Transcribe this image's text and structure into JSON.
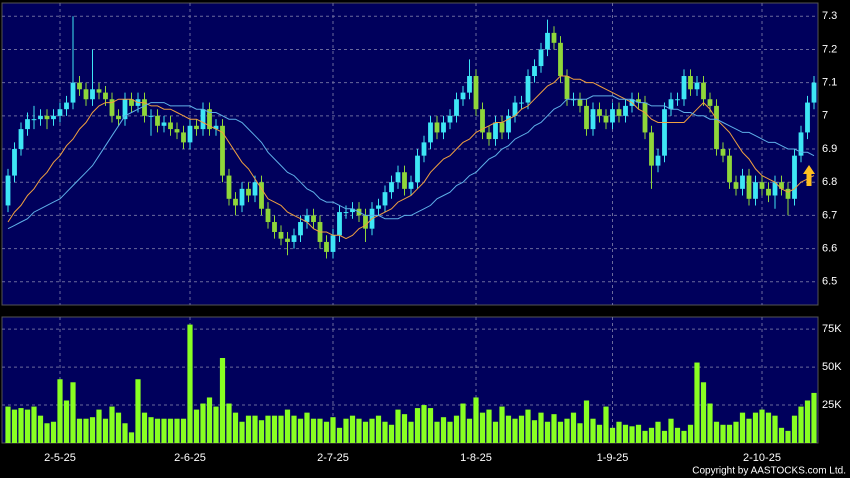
{
  "chart_data": [
    {
      "type": "candlestick",
      "categories": [
        null,
        null,
        null,
        null,
        null,
        null,
        null,
        null,
        "2-5-25",
        null,
        null,
        null,
        null,
        null,
        null,
        null,
        null,
        null,
        null,
        null,
        null,
        null,
        null,
        null,
        null,
        null,
        null,
        null,
        "2-6-25",
        null,
        null,
        null,
        null,
        null,
        null,
        null,
        null,
        null,
        null,
        null,
        null,
        null,
        null,
        null,
        null,
        null,
        null,
        null,
        null,
        null,
        "2-7-25",
        null,
        null,
        null,
        null,
        null,
        null,
        null,
        null,
        null,
        null,
        null,
        null,
        null,
        null,
        null,
        null,
        null,
        null,
        null,
        null,
        null,
        "1-8-25",
        null,
        null,
        null,
        null,
        null,
        null,
        null,
        null,
        null,
        null,
        null,
        null,
        null,
        null,
        null,
        null,
        null,
        null,
        null,
        null,
        "1-9-25",
        null,
        null,
        null,
        null,
        null,
        null,
        null,
        null,
        null,
        null,
        null,
        null,
        null,
        null,
        null,
        null,
        null,
        null,
        null,
        null,
        null,
        null,
        "2-10-25",
        null,
        null,
        null,
        null,
        null,
        null,
        null,
        null
      ],
      "open": [
        6.73,
        6.82,
        6.9,
        6.96,
        6.99,
        6.99,
        7.0,
        6.99,
        7.0,
        7.02,
        7.04,
        7.1,
        7.08,
        7.05,
        7.08,
        7.07,
        7.05,
        7.0,
        6.99,
        7.05,
        7.03,
        7.05,
        7.0,
        7.0,
        6.97,
        6.98,
        6.96,
        6.95,
        6.92,
        6.97,
        6.96,
        7.02,
        6.96,
        6.97,
        6.82,
        6.75,
        6.73,
        6.78,
        6.76,
        6.8,
        6.72,
        6.68,
        6.65,
        6.63,
        6.62,
        6.64,
        6.68,
        6.7,
        6.68,
        6.62,
        6.59,
        6.64,
        6.71,
        6.71,
        6.72,
        6.7,
        6.66,
        6.72,
        6.73,
        6.77,
        6.8,
        6.83,
        6.78,
        6.8,
        6.88,
        6.92,
        6.98,
        6.95,
        6.98,
        7.0,
        7.05,
        7.07,
        7.12,
        7.02,
        6.95,
        6.93,
        6.98,
        6.95,
        7.0,
        7.04,
        7.04,
        7.12,
        7.15,
        7.2,
        7.25,
        7.22,
        7.12,
        7.05,
        7.05,
        7.03,
        6.96,
        7.02,
        7.0,
        6.98,
        7.02,
        7.0,
        7.03,
        7.05,
        7.04,
        6.95,
        6.85,
        6.88,
        7.02,
        7.05,
        7.05,
        7.12,
        7.08,
        7.1,
        7.05,
        7.03,
        6.9,
        6.88,
        6.8,
        6.78,
        6.82,
        6.75,
        6.8,
        6.78,
        6.76,
        6.8,
        6.78,
        6.75,
        6.88,
        6.95,
        7.04
      ],
      "high": [
        6.84,
        6.92,
        6.98,
        7.01,
        7.03,
        7.02,
        7.02,
        7.02,
        7.04,
        7.06,
        7.3,
        7.12,
        7.1,
        7.2,
        7.1,
        7.09,
        7.07,
        7.02,
        7.07,
        7.07,
        7.07,
        7.07,
        7.02,
        7.02,
        7.0,
        7.0,
        6.98,
        6.97,
        6.99,
        6.99,
        7.04,
        7.04,
        6.99,
        6.99,
        6.84,
        6.77,
        6.8,
        6.8,
        6.82,
        6.82,
        6.74,
        6.7,
        6.67,
        6.65,
        6.66,
        6.7,
        6.72,
        6.72,
        6.7,
        6.64,
        6.66,
        6.73,
        6.73,
        6.74,
        6.74,
        6.72,
        6.74,
        6.75,
        6.79,
        6.82,
        6.85,
        6.85,
        6.82,
        6.9,
        6.94,
        7.0,
        7.0,
        7.0,
        7.02,
        7.07,
        7.09,
        7.17,
        7.14,
        7.04,
        6.97,
        7.0,
        7.0,
        7.02,
        7.06,
        7.06,
        7.14,
        7.17,
        7.22,
        7.29,
        7.27,
        7.24,
        7.14,
        7.07,
        7.07,
        7.05,
        7.04,
        7.04,
        7.02,
        7.04,
        7.04,
        7.05,
        7.07,
        7.07,
        7.06,
        6.97,
        6.9,
        7.04,
        7.07,
        7.07,
        7.14,
        7.14,
        7.12,
        7.12,
        7.07,
        7.05,
        6.92,
        6.9,
        6.82,
        6.84,
        6.84,
        6.82,
        6.82,
        6.8,
        6.82,
        6.82,
        6.8,
        6.9,
        6.97,
        7.06,
        7.12
      ],
      "low": [
        6.71,
        6.8,
        6.88,
        6.94,
        6.96,
        6.97,
        6.96,
        6.97,
        6.98,
        7.0,
        7.02,
        7.06,
        7.03,
        7.03,
        7.05,
        7.03,
        6.98,
        6.97,
        6.97,
        7.01,
        7.01,
        6.98,
        6.94,
        6.95,
        6.95,
        6.94,
        6.93,
        6.9,
        6.9,
        6.94,
        6.94,
        6.94,
        6.94,
        6.8,
        6.73,
        6.7,
        6.71,
        6.74,
        6.74,
        6.7,
        6.66,
        6.63,
        6.61,
        6.58,
        6.6,
        6.62,
        6.66,
        6.66,
        6.6,
        6.57,
        6.57,
        6.62,
        6.69,
        6.69,
        6.68,
        6.62,
        6.64,
        6.7,
        6.71,
        6.75,
        6.78,
        6.76,
        6.76,
        6.78,
        6.86,
        6.9,
        6.93,
        6.93,
        6.96,
        6.98,
        7.03,
        7.05,
        7.0,
        6.93,
        6.91,
        6.91,
        6.93,
        6.93,
        6.98,
        7.02,
        7.02,
        7.1,
        7.13,
        7.18,
        7.2,
        7.1,
        7.03,
        7.03,
        7.01,
        6.94,
        6.94,
        6.98,
        6.96,
        6.96,
        6.98,
        6.98,
        7.01,
        7.02,
        6.93,
        6.78,
        6.83,
        6.86,
        7.0,
        7.03,
        7.03,
        7.06,
        7.06,
        7.03,
        7.01,
        6.88,
        6.86,
        6.78,
        6.76,
        6.76,
        6.73,
        6.73,
        6.76,
        6.74,
        6.72,
        6.76,
        6.7,
        6.73,
        6.86,
        6.93,
        7.02
      ],
      "close": [
        6.82,
        6.9,
        6.96,
        6.99,
        6.99,
        7.0,
        6.99,
        7.0,
        7.02,
        7.04,
        7.1,
        7.08,
        7.05,
        7.08,
        7.07,
        7.05,
        7.0,
        6.99,
        7.05,
        7.03,
        7.05,
        7.0,
        7.0,
        6.97,
        6.98,
        6.96,
        6.95,
        6.92,
        6.97,
        6.96,
        7.02,
        6.96,
        6.97,
        6.82,
        6.75,
        6.73,
        6.78,
        6.76,
        6.8,
        6.72,
        6.68,
        6.65,
        6.63,
        6.62,
        6.64,
        6.68,
        6.7,
        6.68,
        6.62,
        6.59,
        6.64,
        6.71,
        6.71,
        6.72,
        6.7,
        6.66,
        6.72,
        6.73,
        6.77,
        6.8,
        6.83,
        6.78,
        6.8,
        6.88,
        6.92,
        6.98,
        6.95,
        6.98,
        7.0,
        7.05,
        7.07,
        7.12,
        7.02,
        6.95,
        6.93,
        6.98,
        6.95,
        7.0,
        7.04,
        7.04,
        7.12,
        7.15,
        7.2,
        7.25,
        7.22,
        7.12,
        7.05,
        7.05,
        7.03,
        6.96,
        7.02,
        7.0,
        6.98,
        7.02,
        7.0,
        7.03,
        7.05,
        7.04,
        6.95,
        6.85,
        6.88,
        7.02,
        7.05,
        7.05,
        7.12,
        7.08,
        7.1,
        7.05,
        7.03,
        6.9,
        6.88,
        6.8,
        6.78,
        6.82,
        6.75,
        6.8,
        6.78,
        6.76,
        6.8,
        6.78,
        6.75,
        6.88,
        6.95,
        7.04,
        7.1
      ],
      "up_color": "#3ee6f5",
      "down_color": "#8fd63a",
      "series": [
        {
          "color": "#f0a040",
          "values": [
            6.68,
            6.71,
            6.73,
            6.76,
            6.78,
            6.81,
            6.83,
            6.86,
            6.88,
            6.91,
            6.93,
            6.96,
            6.98,
            7.01,
            7.03,
            7.04,
            7.04,
            7.05,
            7.05,
            7.05,
            7.04,
            7.04,
            7.03,
            7.03,
            7.02,
            7.02,
            7.01,
            7.0,
            6.99,
            6.99,
            6.98,
            6.97,
            6.96,
            6.95,
            6.92,
            6.89,
            6.86,
            6.84,
            6.81,
            6.78,
            6.75,
            6.74,
            6.73,
            6.71,
            6.7,
            6.69,
            6.68,
            6.66,
            6.65,
            6.65,
            6.64,
            6.64,
            6.63,
            6.64,
            6.66,
            6.67,
            6.69,
            6.7,
            6.71,
            6.72,
            6.74,
            6.75,
            6.76,
            6.78,
            6.8,
            6.83,
            6.85,
            6.87,
            6.88,
            6.9,
            6.92,
            6.93,
            6.95,
            6.96,
            6.97,
            6.98,
            6.98,
            6.99,
            7.0,
            7.02,
            7.03,
            7.05,
            7.07,
            7.09,
            7.1,
            7.12,
            7.12,
            7.11,
            7.11,
            7.1,
            7.1,
            7.09,
            7.08,
            7.07,
            7.06,
            7.05,
            7.04,
            7.02,
            7.01,
            6.99,
            6.98,
            6.98,
            6.98,
            6.98,
            6.98,
            7.0,
            7.02,
            7.04,
            7.02,
            6.99,
            6.97,
            6.95,
            6.92,
            6.89,
            6.87,
            6.84,
            6.82,
            6.81,
            6.8,
            6.78,
            6.77,
            6.78,
            6.8,
            6.81,
            6.82
          ]
        },
        {
          "color": "#5fb0e8",
          "values": [
            6.66,
            6.67,
            6.68,
            6.69,
            6.71,
            6.72,
            6.73,
            6.74,
            6.75,
            6.77,
            6.79,
            6.81,
            6.83,
            6.85,
            6.88,
            6.91,
            6.94,
            6.97,
            7.0,
            7.01,
            7.02,
            7.03,
            7.04,
            7.04,
            7.04,
            7.03,
            7.03,
            7.03,
            7.03,
            7.02,
            7.02,
            7.01,
            7.01,
            7.0,
            6.99,
            6.99,
            6.98,
            6.96,
            6.94,
            6.92,
            6.89,
            6.87,
            6.85,
            6.83,
            6.82,
            6.8,
            6.78,
            6.77,
            6.75,
            6.74,
            6.74,
            6.73,
            6.72,
            6.72,
            6.71,
            6.7,
            6.7,
            6.7,
            6.69,
            6.69,
            6.69,
            6.7,
            6.7,
            6.71,
            6.72,
            6.73,
            6.75,
            6.76,
            6.77,
            6.79,
            6.8,
            6.82,
            6.83,
            6.85,
            6.87,
            6.88,
            6.9,
            6.91,
            6.93,
            6.94,
            6.95,
            6.97,
            6.98,
            7.0,
            7.02,
            7.03,
            7.05,
            7.05,
            7.05,
            7.05,
            7.06,
            7.06,
            7.06,
            7.06,
            7.05,
            7.05,
            7.05,
            7.04,
            7.04,
            7.03,
            7.03,
            7.03,
            7.02,
            7.02,
            7.01,
            7.01,
            7.0,
            7.0,
            6.99,
            6.99,
            6.98,
            6.97,
            6.96,
            6.95,
            6.95,
            6.94,
            6.93,
            6.92,
            6.92,
            6.91,
            6.9,
            6.9,
            6.89,
            6.89,
            6.88
          ]
        }
      ],
      "ylim": [
        6.43,
        7.34
      ],
      "yticks": [
        6.5,
        6.6,
        6.7,
        6.8,
        6.9,
        7,
        7.1,
        7.2,
        7.3
      ],
      "grid": true
    },
    {
      "type": "bar",
      "color": "#88ff22",
      "values": [
        24000,
        22000,
        23000,
        22000,
        24000,
        18000,
        13000,
        14000,
        42000,
        28000,
        40000,
        16000,
        16000,
        17000,
        22000,
        16000,
        24000,
        20000,
        13000,
        7000,
        42000,
        20000,
        17000,
        16000,
        16000,
        16000,
        16000,
        16000,
        78000,
        22000,
        26000,
        30000,
        24000,
        56000,
        26000,
        20000,
        14000,
        18000,
        18000,
        15000,
        18000,
        18000,
        18000,
        22000,
        18000,
        16000,
        20000,
        16000,
        16000,
        14000,
        17000,
        10000,
        16000,
        18000,
        16000,
        14000,
        16000,
        18000,
        14000,
        12000,
        22000,
        19000,
        14000,
        23000,
        25000,
        23000,
        14000,
        17000,
        14000,
        18000,
        26000,
        16000,
        30000,
        20000,
        22000,
        14000,
        24000,
        18000,
        16000,
        18000,
        22000,
        15000,
        20000,
        14000,
        19000,
        14000,
        16000,
        20000,
        13000,
        28000,
        16000,
        12000,
        24000,
        10000,
        14000,
        12000,
        11000,
        12000,
        8000,
        10000,
        14000,
        8000,
        16000,
        10000,
        8000,
        12000,
        53000,
        40000,
        26000,
        14000,
        12000,
        12000,
        14000,
        20000,
        16000,
        20000,
        22000,
        20000,
        18000,
        10000,
        8000,
        18000,
        24000,
        28000,
        33000
      ],
      "ylim": [
        0,
        83000
      ],
      "yticks": [
        {
          "value": 25000,
          "label": "25K"
        },
        {
          "value": 50000,
          "label": "50K"
        },
        {
          "value": 75000,
          "label": "75K"
        }
      ],
      "grid": true
    }
  ],
  "footer": "Copyright by AASTOCKS.com Ltd."
}
